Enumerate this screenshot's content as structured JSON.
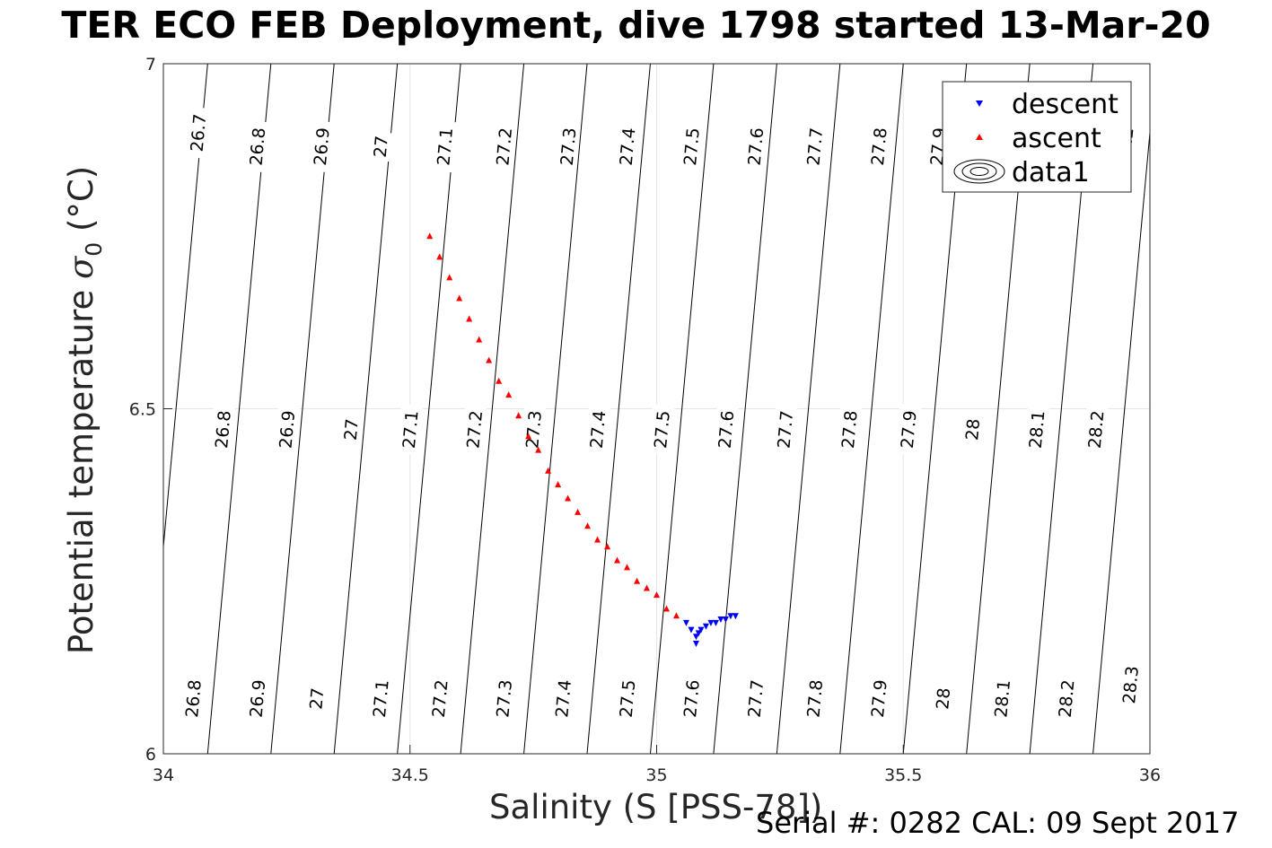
{
  "title": "TER ECO FEB Deployment, dive 1798 started 13-Mar-20",
  "xlabel": "Salinity (S [PSS-78])",
  "ylabel": {
    "prefix": "Potential temperature ",
    "symbol": "σ",
    "subscript": "0",
    "suffix": " (°C)"
  },
  "footer": "Serial #: 0282  CAL: 09 Sept 2017",
  "legend": {
    "descent": "descent",
    "ascent": "ascent",
    "data1": "data1"
  },
  "colors": {
    "descent": "#0000ff",
    "ascent": "#ff0000",
    "contour": "#000000",
    "grid": "#e6e6e6"
  },
  "chart_data": {
    "type": "scatter",
    "xlim": [
      34,
      36
    ],
    "ylim": [
      6,
      7
    ],
    "xticks": [
      "34",
      "34.5",
      "35",
      "35.5",
      "36"
    ],
    "xtick_values": [
      34,
      34.5,
      35,
      35.5,
      36
    ],
    "yticks": [
      "6",
      "6.5",
      "7"
    ],
    "ytick_values": [
      6,
      6.5,
      7
    ],
    "grid": true,
    "legend_position": "top-right",
    "contours": {
      "levels": [
        26.7,
        26.8,
        26.9,
        27,
        27.1,
        27.2,
        27.3,
        27.4,
        27.5,
        27.6,
        27.7,
        27.8,
        27.9,
        28,
        28.1,
        28.2,
        28.3
      ],
      "labels": [
        {
          "text": "26.7",
          "s": 34.07,
          "t": 6.9
        },
        {
          "text": "26.8",
          "s": 34.19,
          "t": 6.88
        },
        {
          "text": "26.9",
          "s": 34.32,
          "t": 6.88
        },
        {
          "text": "27",
          "s": 34.44,
          "t": 6.88
        },
        {
          "text": "27.1",
          "s": 34.57,
          "t": 6.88
        },
        {
          "text": "27.2",
          "s": 34.69,
          "t": 6.88
        },
        {
          "text": "27.3",
          "s": 34.82,
          "t": 6.88
        },
        {
          "text": "27.4",
          "s": 34.94,
          "t": 6.88
        },
        {
          "text": "27.5",
          "s": 35.07,
          "t": 6.88
        },
        {
          "text": "27.6",
          "s": 35.2,
          "t": 6.88
        },
        {
          "text": "27.7",
          "s": 35.32,
          "t": 6.88
        },
        {
          "text": "27.8",
          "s": 35.45,
          "t": 6.88
        },
        {
          "text": "27.9",
          "s": 35.57,
          "t": 6.88
        },
        {
          "text": "28.2",
          "s": 35.95,
          "t": 6.88
        },
        {
          "text": "26.8",
          "s": 34.12,
          "t": 6.47
        },
        {
          "text": "26.9",
          "s": 34.25,
          "t": 6.47
        },
        {
          "text": "27",
          "s": 34.38,
          "t": 6.47
        },
        {
          "text": "27.1",
          "s": 34.5,
          "t": 6.47
        },
        {
          "text": "27.2",
          "s": 34.63,
          "t": 6.47
        },
        {
          "text": "27.3",
          "s": 34.75,
          "t": 6.47
        },
        {
          "text": "27.4",
          "s": 34.88,
          "t": 6.47
        },
        {
          "text": "27.5",
          "s": 35.01,
          "t": 6.47
        },
        {
          "text": "27.6",
          "s": 35.14,
          "t": 6.47
        },
        {
          "text": "27.7",
          "s": 35.26,
          "t": 6.47
        },
        {
          "text": "27.8",
          "s": 35.39,
          "t": 6.47
        },
        {
          "text": "27.9",
          "s": 35.51,
          "t": 6.47
        },
        {
          "text": "28",
          "s": 35.64,
          "t": 6.47
        },
        {
          "text": "28.1",
          "s": 35.77,
          "t": 6.47
        },
        {
          "text": "28.2",
          "s": 35.89,
          "t": 6.47
        },
        {
          "text": "26.8",
          "s": 34.06,
          "t": 6.08
        },
        {
          "text": "26.9",
          "s": 34.19,
          "t": 6.08
        },
        {
          "text": "27",
          "s": 34.31,
          "t": 6.08
        },
        {
          "text": "27.1",
          "s": 34.44,
          "t": 6.08
        },
        {
          "text": "27.2",
          "s": 34.56,
          "t": 6.08
        },
        {
          "text": "27.3",
          "s": 34.69,
          "t": 6.08
        },
        {
          "text": "27.4",
          "s": 34.81,
          "t": 6.08
        },
        {
          "text": "27.5",
          "s": 34.94,
          "t": 6.08
        },
        {
          "text": "27.6",
          "s": 35.07,
          "t": 6.08
        },
        {
          "text": "27.7",
          "s": 35.2,
          "t": 6.08
        },
        {
          "text": "27.8",
          "s": 35.32,
          "t": 6.08
        },
        {
          "text": "27.9",
          "s": 35.45,
          "t": 6.08
        },
        {
          "text": "28",
          "s": 35.58,
          "t": 6.08
        },
        {
          "text": "28.1",
          "s": 35.7,
          "t": 6.08
        },
        {
          "text": "28.2",
          "s": 35.83,
          "t": 6.08
        },
        {
          "text": "28.3",
          "s": 35.96,
          "t": 6.1
        }
      ]
    },
    "series": [
      {
        "name": "ascent",
        "marker": "triangle-up",
        "x": [
          34.54,
          34.56,
          34.58,
          34.6,
          34.62,
          34.64,
          34.66,
          34.68,
          34.7,
          34.72,
          34.74,
          34.76,
          34.78,
          34.8,
          34.82,
          34.84,
          34.86,
          34.88,
          34.9,
          34.92,
          34.94,
          34.96,
          34.98,
          35.0,
          35.02,
          35.04
        ],
        "y": [
          6.75,
          6.72,
          6.69,
          6.66,
          6.63,
          6.6,
          6.57,
          6.54,
          6.52,
          6.49,
          6.46,
          6.44,
          6.41,
          6.39,
          6.37,
          6.35,
          6.33,
          6.31,
          6.3,
          6.28,
          6.27,
          6.25,
          6.24,
          6.23,
          6.21,
          6.2
        ]
      },
      {
        "name": "descent",
        "marker": "triangle-down",
        "x": [
          35.06,
          35.07,
          35.08,
          35.09,
          35.1,
          35.11,
          35.12,
          35.13,
          35.14,
          35.15,
          35.16,
          35.08,
          35.085
        ],
        "y": [
          6.19,
          6.18,
          6.17,
          6.18,
          6.185,
          6.19,
          6.19,
          6.195,
          6.195,
          6.2,
          6.2,
          6.16,
          6.175
        ]
      }
    ]
  }
}
